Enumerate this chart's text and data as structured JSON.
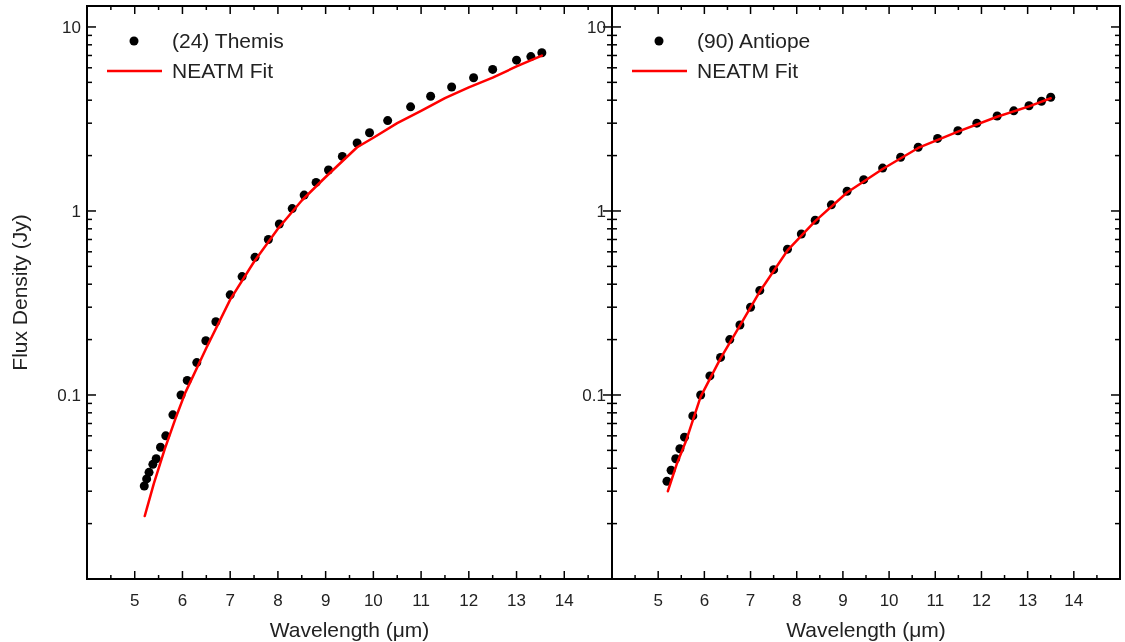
{
  "chart_data": [
    {
      "type": "scatter",
      "xlabel": "Wavelength (μm)",
      "ylabel": "Flux Density (Jy)",
      "log": "y",
      "legend": "top left",
      "xlim": [
        4,
        15
      ],
      "ylim": [
        0.01,
        13
      ],
      "xticks": [
        {
          "value": 4.5,
          "label": null
        },
        5,
        {
          "value": 5.5,
          "label": null
        },
        6,
        {
          "value": 6.5,
          "label": null
        },
        7,
        {
          "value": 7.5,
          "label": null
        },
        8,
        {
          "value": 8.5,
          "label": null
        },
        9,
        {
          "value": 9.5,
          "label": null
        },
        10,
        {
          "value": 10.5,
          "label": null
        },
        11,
        {
          "value": 11.5,
          "label": null
        },
        12,
        {
          "value": 12.5,
          "label": null
        },
        13,
        {
          "value": 13.5,
          "label": null
        },
        14,
        {
          "value": 14.5,
          "label": null
        }
      ],
      "yticks": [
        {
          "value": 0.02,
          "label": null
        },
        {
          "value": 0.03,
          "label": null
        },
        {
          "value": 0.04,
          "label": null
        },
        {
          "value": 0.05,
          "label": null
        },
        {
          "value": 0.06,
          "label": null
        },
        {
          "value": 0.07,
          "label": null
        },
        {
          "value": 0.08,
          "label": null
        },
        {
          "value": 0.09,
          "label": null
        },
        0.1,
        {
          "value": 0.2,
          "label": null
        },
        {
          "value": 0.3,
          "label": null
        },
        {
          "value": 0.4,
          "label": null
        },
        {
          "value": 0.5,
          "label": null
        },
        {
          "value": 0.6,
          "label": null
        },
        {
          "value": 0.7,
          "label": null
        },
        {
          "value": 0.8,
          "label": null
        },
        {
          "value": 0.9,
          "label": null
        },
        1,
        {
          "value": 2,
          "label": null
        },
        {
          "value": 3,
          "label": null
        },
        {
          "value": 4,
          "label": null
        },
        {
          "value": 5,
          "label": null
        },
        {
          "value": 6,
          "label": null
        },
        {
          "value": 7,
          "label": null
        },
        {
          "value": 8,
          "label": null
        },
        {
          "value": 9,
          "label": null
        },
        10
      ],
      "series": [
        {
          "name": "(24) Themis",
          "marker": "circle",
          "color": "#000000",
          "x": [
            5.2,
            5.25,
            5.3,
            5.38,
            5.45,
            5.54,
            5.65,
            5.8,
            5.97,
            6.1,
            6.3,
            6.49,
            6.7,
            7.0,
            7.25,
            7.52,
            7.8,
            8.03,
            8.3,
            8.55,
            8.8,
            9.06,
            9.35,
            9.66,
            9.92,
            10.3,
            10.78,
            11.2,
            11.64,
            12.1,
            12.5,
            13.0,
            13.3,
            13.53
          ],
          "values": [
            0.032,
            0.035,
            0.038,
            0.042,
            0.045,
            0.052,
            0.06,
            0.078,
            0.1,
            0.12,
            0.15,
            0.197,
            0.25,
            0.35,
            0.44,
            0.56,
            0.7,
            0.85,
            1.03,
            1.22,
            1.43,
            1.67,
            1.98,
            2.34,
            2.66,
            3.1,
            3.68,
            4.2,
            4.72,
            5.3,
            5.88,
            6.6,
            6.9,
            7.24
          ]
        },
        {
          "name": "NEATM Fit",
          "type": "line",
          "line_style": "solid",
          "color": "#ff0000",
          "x": [
            5.21,
            5.4,
            5.63,
            5.85,
            6.06,
            6.5,
            7.0,
            7.5,
            8.0,
            8.5,
            9.0,
            9.66,
            10.0,
            10.5,
            11.0,
            11.5,
            12.0,
            12.5,
            13.0,
            13.53
          ],
          "values": [
            0.022,
            0.033,
            0.051,
            0.074,
            0.103,
            0.18,
            0.33,
            0.53,
            0.8,
            1.14,
            1.53,
            2.22,
            2.5,
            3.0,
            3.5,
            4.1,
            4.7,
            5.3,
            6.1,
            6.99
          ]
        }
      ]
    },
    {
      "type": "scatter",
      "xlabel": "Wavelength (μm)",
      "log": "y",
      "legend": "top left",
      "xlim": [
        4,
        15
      ],
      "ylim": [
        0.01,
        13
      ],
      "xticks": [
        {
          "value": 4.5,
          "label": null
        },
        5,
        {
          "value": 5.5,
          "label": null
        },
        6,
        {
          "value": 6.5,
          "label": null
        },
        7,
        {
          "value": 7.5,
          "label": null
        },
        8,
        {
          "value": 8.5,
          "label": null
        },
        9,
        {
          "value": 9.5,
          "label": null
        },
        10,
        {
          "value": 10.5,
          "label": null
        },
        11,
        {
          "value": 11.5,
          "label": null
        },
        12,
        {
          "value": 12.5,
          "label": null
        },
        13,
        {
          "value": 13.5,
          "label": null
        },
        14,
        {
          "value": 14.5,
          "label": null
        }
      ],
      "yticks": [
        {
          "value": 0.02,
          "label": null
        },
        {
          "value": 0.03,
          "label": null
        },
        {
          "value": 0.04,
          "label": null
        },
        {
          "value": 0.05,
          "label": null
        },
        {
          "value": 0.06,
          "label": null
        },
        {
          "value": 0.07,
          "label": null
        },
        {
          "value": 0.08,
          "label": null
        },
        {
          "value": 0.09,
          "label": null
        },
        0.1,
        {
          "value": 0.2,
          "label": null
        },
        {
          "value": 0.3,
          "label": null
        },
        {
          "value": 0.4,
          "label": null
        },
        {
          "value": 0.5,
          "label": null
        },
        {
          "value": 0.6,
          "label": null
        },
        {
          "value": 0.7,
          "label": null
        },
        {
          "value": 0.8,
          "label": null
        },
        {
          "value": 0.9,
          "label": null
        },
        1,
        {
          "value": 2,
          "label": null
        },
        {
          "value": 3,
          "label": null
        },
        {
          "value": 4,
          "label": null
        },
        {
          "value": 5,
          "label": null
        },
        {
          "value": 6,
          "label": null
        },
        {
          "value": 7,
          "label": null
        },
        {
          "value": 8,
          "label": null
        },
        {
          "value": 9,
          "label": null
        },
        10
      ],
      "series": [
        {
          "name": "(90) Antiope",
          "marker": "circle",
          "color": "#000000",
          "x": [
            5.19,
            5.28,
            5.38,
            5.47,
            5.57,
            5.75,
            5.92,
            6.12,
            6.35,
            6.55,
            6.77,
            7.0,
            7.2,
            7.5,
            7.8,
            8.1,
            8.4,
            8.75,
            9.09,
            9.45,
            9.86,
            10.25,
            10.63,
            11.05,
            11.49,
            11.9,
            12.34,
            12.7,
            13.03,
            13.3,
            13.5
          ],
          "values": [
            0.034,
            0.039,
            0.045,
            0.051,
            0.059,
            0.077,
            0.1,
            0.127,
            0.16,
            0.2,
            0.24,
            0.3,
            0.37,
            0.48,
            0.62,
            0.75,
            0.89,
            1.08,
            1.28,
            1.48,
            1.71,
            1.96,
            2.22,
            2.48,
            2.73,
            3.0,
            3.28,
            3.5,
            3.73,
            3.95,
            4.15
          ]
        },
        {
          "name": "NEATM Fit",
          "type": "line",
          "line_style": "solid",
          "color": "#ff0000",
          "x": [
            5.21,
            5.4,
            5.6,
            5.92,
            6.35,
            6.77,
            7.2,
            7.8,
            8.4,
            9.09,
            9.86,
            10.63,
            11.49,
            12.34,
            13.03,
            13.5
          ],
          "values": [
            0.03,
            0.042,
            0.056,
            0.098,
            0.158,
            0.238,
            0.365,
            0.61,
            0.88,
            1.26,
            1.69,
            2.2,
            2.7,
            3.25,
            3.7,
            4.1
          ]
        }
      ]
    }
  ]
}
